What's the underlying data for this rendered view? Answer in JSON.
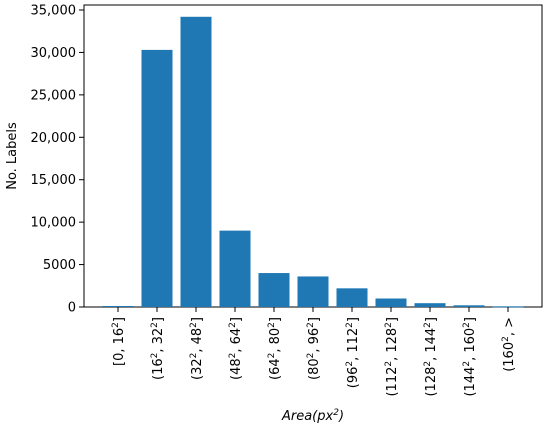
{
  "chart_data": {
    "type": "bar",
    "categories": [
      {
        "a": "0",
        "b": "16",
        "open": "[",
        "close": "]"
      },
      {
        "a": "16",
        "b": "32",
        "open": "(",
        "close": "]"
      },
      {
        "a": "32",
        "b": "48",
        "open": "(",
        "close": "]"
      },
      {
        "a": "48",
        "b": "64",
        "open": "(",
        "close": "]"
      },
      {
        "a": "64",
        "b": "80",
        "open": "(",
        "close": "]"
      },
      {
        "a": "80",
        "b": "96",
        "open": "(",
        "close": "]"
      },
      {
        "a": "96",
        "b": "112",
        "open": "(",
        "close": "]"
      },
      {
        "a": "112",
        "b": "128",
        "open": "(",
        "close": "]"
      },
      {
        "a": "128",
        "b": "144",
        "open": "(",
        "close": "]"
      },
      {
        "a": "144",
        "b": "160",
        "open": "(",
        "close": "]"
      },
      {
        "a": "160",
        "b": ">",
        "open": "(",
        "close": ""
      }
    ],
    "values": [
      120,
      30300,
      34200,
      9000,
      4000,
      3600,
      2200,
      1000,
      450,
      200,
      80
    ],
    "bar_color": "#1f77b4",
    "xlabel": "Area(px²)",
    "ylabel": "No. Labels",
    "ylim": [
      0,
      35000
    ],
    "yticks": [
      {
        "value": 0,
        "label": "0"
      },
      {
        "value": 5000,
        "label": "5000"
      },
      {
        "value": 10000,
        "label": "10,000"
      },
      {
        "value": 15000,
        "label": "15,000"
      },
      {
        "value": 20000,
        "label": "20,000"
      },
      {
        "value": 25000,
        "label": "25,000"
      },
      {
        "value": 30000,
        "label": "30,000"
      },
      {
        "value": 35000,
        "label": "35,000"
      }
    ],
    "grid": false,
    "legend": "none"
  }
}
